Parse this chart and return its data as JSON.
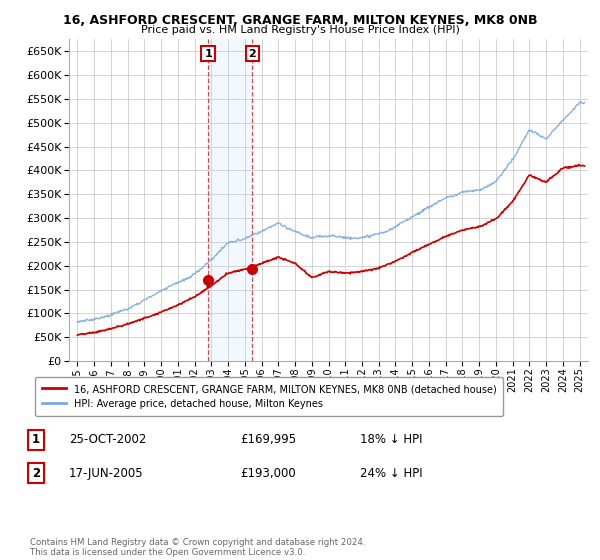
{
  "title": "16, ASHFORD CRESCENT, GRANGE FARM, MILTON KEYNES, MK8 0NB",
  "subtitle": "Price paid vs. HM Land Registry's House Price Index (HPI)",
  "ylim": [
    0,
    675000
  ],
  "yticks": [
    0,
    50000,
    100000,
    150000,
    200000,
    250000,
    300000,
    350000,
    400000,
    450000,
    500000,
    550000,
    600000,
    650000
  ],
  "xlim_start": 1994.5,
  "xlim_end": 2025.5,
  "legend_line1": "16, ASHFORD CRESCENT, GRANGE FARM, MILTON KEYNES, MK8 0NB (detached house)",
  "legend_line2": "HPI: Average price, detached house, Milton Keynes",
  "sale1_x": 2002.81,
  "sale1_y": 169995,
  "sale2_x": 2005.46,
  "sale2_y": 193000,
  "sale1_date": "25-OCT-2002",
  "sale1_price": "£169,995",
  "sale1_hpi": "18% ↓ HPI",
  "sale2_date": "17-JUN-2005",
  "sale2_price": "£193,000",
  "sale2_hpi": "24% ↓ HPI",
  "hpi_color": "#7aaadd",
  "price_color": "#cc0000",
  "shade_color": "#ddeeff",
  "copyright_text": "Contains HM Land Registry data © Crown copyright and database right 2024.\nThis data is licensed under the Open Government Licence v3.0.",
  "grid_color": "#cccccc",
  "background_color": "#ffffff",
  "hpi_years": [
    1995,
    1996,
    1997,
    1998,
    1999,
    2000,
    2001,
    2002,
    2003,
    2004,
    2005,
    2006,
    2007,
    2008,
    2009,
    2010,
    2011,
    2012,
    2013,
    2014,
    2015,
    2016,
    2017,
    2018,
    2019,
    2020,
    2021,
    2022,
    2023,
    2024,
    2025
  ],
  "hpi_vals": [
    75000,
    82000,
    92000,
    105000,
    122000,
    140000,
    158000,
    178000,
    208000,
    245000,
    253000,
    268000,
    285000,
    268000,
    255000,
    262000,
    258000,
    260000,
    268000,
    285000,
    308000,
    328000,
    348000,
    362000,
    368000,
    385000,
    428000,
    490000,
    470000,
    510000,
    550000
  ],
  "price_years": [
    1995,
    1996,
    1997,
    1998,
    1999,
    2000,
    2001,
    2002,
    2003,
    2004,
    2005,
    2006,
    2007,
    2008,
    2009,
    2010,
    2011,
    2012,
    2013,
    2014,
    2015,
    2016,
    2017,
    2018,
    2019,
    2020,
    2021,
    2022,
    2023,
    2024,
    2025
  ],
  "price_vals": [
    55000,
    60000,
    68000,
    78000,
    90000,
    103000,
    118000,
    135000,
    158000,
    185000,
    193000,
    205000,
    218000,
    205000,
    175000,
    188000,
    185000,
    188000,
    195000,
    210000,
    228000,
    245000,
    262000,
    275000,
    282000,
    298000,
    335000,
    390000,
    375000,
    405000,
    410000
  ]
}
